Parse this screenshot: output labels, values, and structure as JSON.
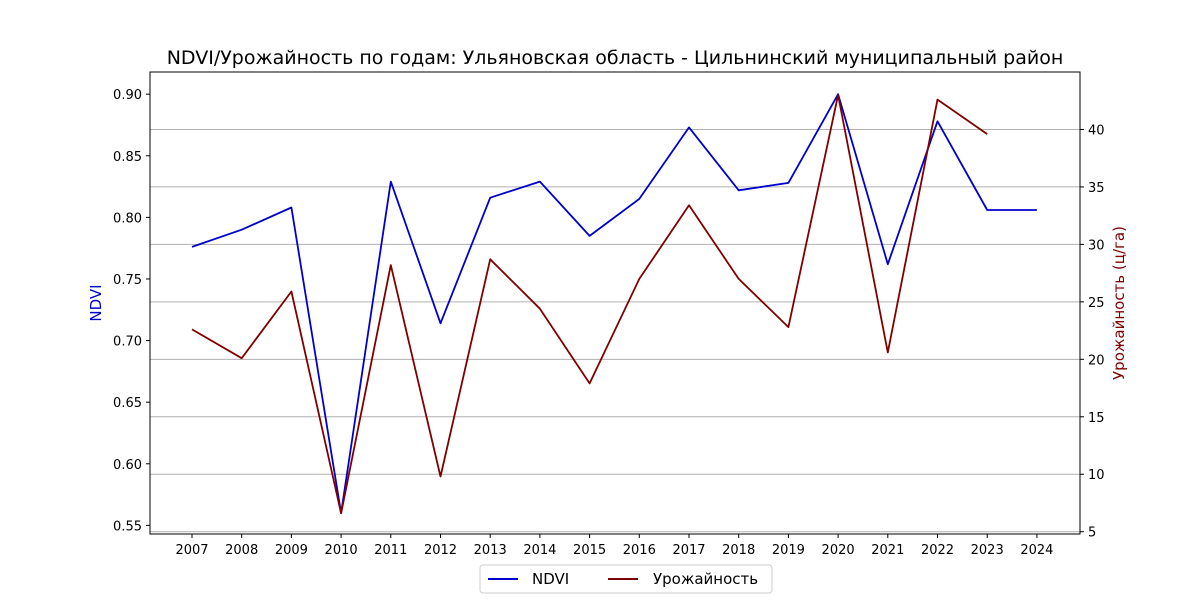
{
  "chart_data": {
    "type": "line",
    "title": "NDVI/Урожайность по годам: Ульяновская область - Цильнинский муниципальный район",
    "x": [
      "2007",
      "2008",
      "2009",
      "2010",
      "2011",
      "2012",
      "2013",
      "2014",
      "2015",
      "2016",
      "2017",
      "2018",
      "2019",
      "2020",
      "2021",
      "2022",
      "2023",
      "2024"
    ],
    "left_axis": {
      "label": "NDVI",
      "color": "#0000cc",
      "ylim": [
        0.543,
        0.918
      ],
      "ticks": [
        "0.55",
        "0.60",
        "0.65",
        "0.70",
        "0.75",
        "0.80",
        "0.85",
        "0.90"
      ]
    },
    "right_axis": {
      "label": "Урожайность (ц/га)",
      "color": "#800000",
      "ylim": [
        4.8,
        45.0
      ],
      "ticks": [
        "5",
        "10",
        "15",
        "20",
        "25",
        "30",
        "35",
        "40"
      ]
    },
    "series": [
      {
        "name": "NDVI",
        "axis": "left",
        "color": "#0000cc",
        "values": [
          0.776,
          0.79,
          0.808,
          0.56,
          0.829,
          0.714,
          0.816,
          0.829,
          0.785,
          0.815,
          0.873,
          0.822,
          0.828,
          0.9,
          0.762,
          0.878,
          0.806,
          0.806
        ]
      },
      {
        "name": "Урожайность",
        "axis": "right",
        "color": "#800000",
        "values": [
          22.6,
          20.1,
          25.9,
          6.6,
          28.2,
          9.8,
          28.7,
          24.4,
          17.9,
          27.0,
          33.4,
          27.0,
          22.8,
          43.0,
          20.6,
          42.6,
          39.6,
          null
        ]
      }
    ],
    "grid": "horizontal lines at right-axis ticks",
    "legend": "bottom-center"
  }
}
